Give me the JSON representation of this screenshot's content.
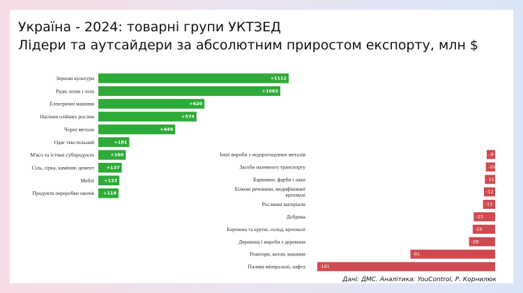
{
  "title": {
    "line1": "Україна - 2024: товарні групи УКТЗЕД",
    "line2": "Лідери та аутсайдери за абсолютним приростом експорту, млн $"
  },
  "source": "Дані: ДМС. Аналітика: YouControl, Р. Корнилюк",
  "colors": {
    "positive": "#2eaa38",
    "negative": "#cf4a4f",
    "background": "#ffffff"
  },
  "chart_data": [
    {
      "type": "bar",
      "orientation": "horizontal",
      "categories": [
        "Зернові культури",
        "Руди, шлак і зола",
        "Електричні машини",
        "Насіння олійних рослин",
        "Чорні метали",
        "Одяг текстильний",
        "М'ясо та їстівні субпродукти",
        "Сіль, сірка, каміння, цемент",
        "Меблі",
        "Продукти переробки овочів"
      ],
      "values": [
        1112,
        1063,
        620,
        574,
        449,
        181,
        160,
        137,
        123,
        118
      ],
      "labels": [
        "+1112",
        "+1063",
        "+620",
        "+574",
        "+449",
        "+181",
        "+160",
        "+137",
        "+123",
        "+118"
      ],
      "color": "#2eaa38"
    },
    {
      "type": "bar",
      "orientation": "horizontal",
      "categories": [
        "Інші вироби з недорогоцінних металів",
        "Засоби наземного транспорту",
        "Барвники, фарби і лаки",
        "Білкові речовини, модифіковані крохмалі",
        "Рослинні матеріали",
        "Добрива",
        "Борошно та крупи, солод, крохмалі",
        "Деревина і вироби з деревини",
        "Реактори, котли, машини",
        "Палива мінеральні, нафта"
      ],
      "values": [
        -9,
        -10,
        -11,
        -12,
        -13,
        -23,
        -24,
        -28,
        -91,
        -191
      ],
      "labels": [
        "-9",
        "-10",
        "-11",
        "-12",
        "-13",
        "-23",
        "-24",
        "-28",
        "-91",
        "-191"
      ],
      "color": "#cf4a4f"
    }
  ]
}
